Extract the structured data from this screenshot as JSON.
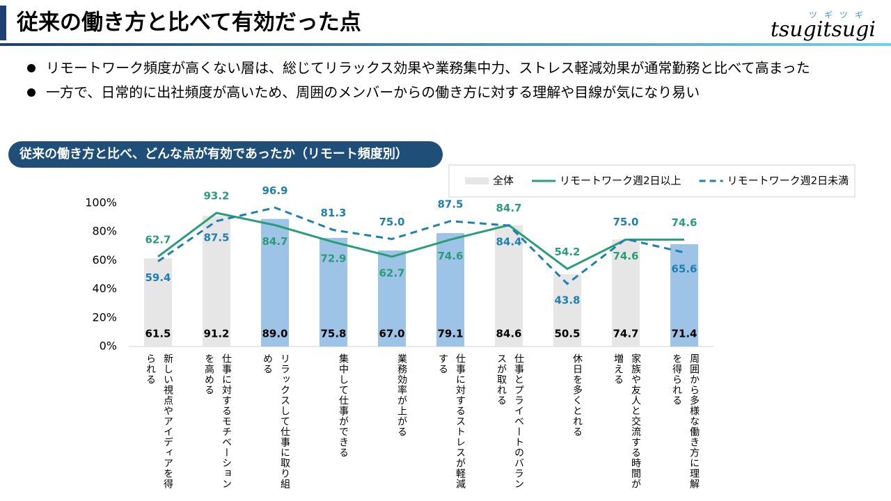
{
  "header": {
    "title": "従来の働き方と比べて有効だった点",
    "logo": "tsugitsugi",
    "logo_kana": "ツギツギ"
  },
  "bullets": [
    "リモートワーク頻度が高くない層は、総じてリラックス効果や業務集中力、ストレス軽減効果が通常勤務と比べて高まった",
    "一方で、日常的に出社頻度が高いため、周囲のメンバーからの働き方に対する理解や目線が気になり易い"
  ],
  "chart_data": {
    "type": "bar-line",
    "title": "従来の働き方と比べ、どんな点が有効であったか（リモート頻度別）",
    "categories": [
      "新しい視点やアイディアを得られる",
      "仕事に対するモチベーションを高める",
      "リラックスして仕事に取り組める",
      "集中して仕事ができる",
      "業務効率が上がる",
      "仕事に対するストレスが軽減する",
      "仕事とプライベートのバランスが取れる",
      "休日を多くとれる",
      "家族や友人と交流する時間が増える",
      "周囲から多様な働き方に理解を得られる"
    ],
    "series": [
      {
        "name": "全体",
        "type": "bar",
        "color": "#e7e6e6",
        "colors": [
          "#e7e6e6",
          "#e7e6e6",
          "#9dc3e6",
          "#9dc3e6",
          "#9dc3e6",
          "#9dc3e6",
          "#e7e6e6",
          "#e7e6e6",
          "#e7e6e6",
          "#9dc3e6"
        ],
        "values": [
          61.5,
          91.2,
          89.0,
          75.8,
          67.0,
          79.1,
          84.6,
          50.5,
          74.7,
          71.4
        ],
        "value_labels": [
          "61.5",
          "91.2",
          "89.0",
          "75.8",
          "67.0",
          "79.1",
          "84.6",
          "50.5",
          "74.7",
          "71.4"
        ]
      },
      {
        "name": "リモートワーク週2日以上",
        "type": "line",
        "color": "#2a9d78",
        "dashed": false,
        "values": [
          62.7,
          93.2,
          84.7,
          72.9,
          62.7,
          74.6,
          84.7,
          54.2,
          74.6,
          74.6
        ],
        "value_labels": [
          "62.7",
          "93.2",
          "84.7",
          "72.9",
          "62.7",
          "74.6",
          "84.7",
          "54.2",
          "74.6",
          "74.6"
        ]
      },
      {
        "name": "リモートワーク週2日未満",
        "type": "line",
        "color": "#1f7fae",
        "dashed": true,
        "values": [
          59.4,
          87.5,
          96.9,
          81.3,
          75.0,
          87.5,
          84.4,
          43.8,
          75.0,
          65.6
        ],
        "value_labels": [
          "59.4",
          "87.5",
          "96.9",
          "81.3",
          "75.0",
          "87.5",
          "84.4",
          "43.8",
          "75.0",
          "65.6"
        ]
      }
    ],
    "ylim": [
      0,
      100
    ],
    "yticks": [
      {
        "value": 0,
        "label": "0%"
      },
      {
        "value": 20,
        "label": "20%"
      },
      {
        "value": 40,
        "label": "40%"
      },
      {
        "value": 60,
        "label": "60%"
      },
      {
        "value": 80,
        "label": "80%"
      },
      {
        "value": 100,
        "label": "100%"
      }
    ],
    "grid": false
  }
}
